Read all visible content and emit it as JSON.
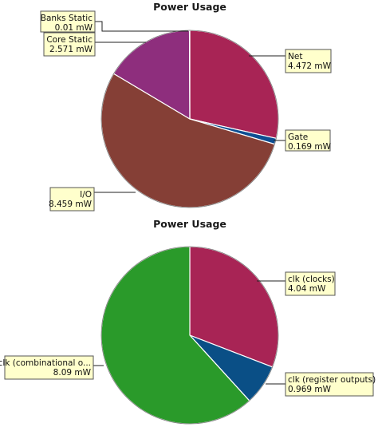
{
  "chart_data": [
    {
      "type": "pie",
      "title": "Power Usage",
      "slices": [
        {
          "name": "Net",
          "value": 4.472,
          "label_value": "4.472 mW",
          "color": "#a82455"
        },
        {
          "name": "Gate",
          "value": 0.169,
          "label_value": "0.169 mW",
          "color": "#0e4e92"
        },
        {
          "name": "I/O",
          "value": 8.459,
          "label_value": "8.459 mW",
          "color": "#853f36"
        },
        {
          "name": "Core Static",
          "value": 2.571,
          "label_value": "2.571 mW",
          "color": "#8e2e7d"
        },
        {
          "name": "Banks Static",
          "value": 0.01,
          "label_value": "0.01 mW",
          "color": "#a0a0a0"
        }
      ]
    },
    {
      "type": "pie",
      "title": "Power Usage",
      "slices": [
        {
          "name": "clk (clocks)",
          "value": 4.04,
          "label_value": "4.04 mW",
          "color": "#a82455"
        },
        {
          "name": "clk (register outputs)",
          "value": 0.969,
          "label_value": "0.969 mW",
          "color": "#0a4f86"
        },
        {
          "name": "clk (combinational o...",
          "value": 8.09,
          "label_value": "8.09 mW",
          "color": "#2a9a2a"
        }
      ]
    }
  ]
}
